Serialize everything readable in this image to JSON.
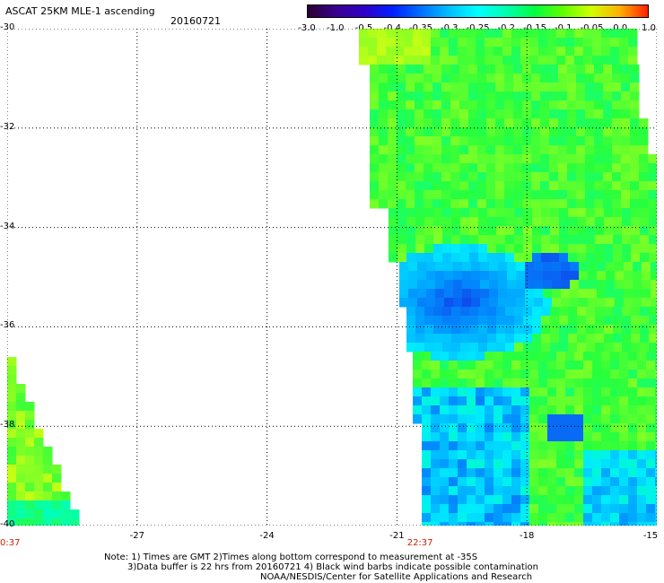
{
  "header": {
    "title": "ASCAT 25KM MLE-1 ascending",
    "date": "20160721"
  },
  "colorbar": {
    "tick_labels": [
      "-3.0",
      "-1.0",
      "-0.5",
      "-0.4",
      "-0.35",
      "-0.3",
      "-0.25",
      "-0.2",
      "-0.15",
      "-0.1",
      "-0.05",
      "0.0",
      "1.0"
    ],
    "colors": [
      "#2a0030",
      "#3a0090",
      "#3000c8",
      "#0020ff",
      "#0070ff",
      "#00c0ff",
      "#00ffff",
      "#00ffb0",
      "#00ff40",
      "#60ff00",
      "#d0ff00",
      "#ffb000",
      "#ff2000"
    ]
  },
  "map": {
    "lat_labels": [
      "-30",
      "-32",
      "-34",
      "-36",
      "-38",
      "-40"
    ],
    "lon_labels": [
      "-27",
      "-24",
      "-21",
      "-18",
      "-15"
    ],
    "lon_range": [
      -30,
      -15
    ],
    "lat_range": [
      -40,
      -30
    ],
    "pass_times": [
      "0:37",
      "22:37"
    ],
    "pass_time_lons": [
      -30,
      -20.6
    ]
  },
  "notes": {
    "line1": "Note: 1) Times are GMT 2)Times along bottom correspond to measurement at -35S",
    "line2": "3)Data buffer is 22 hrs from 20160721 4) Black wind barbs indicate possible contamination",
    "line3": "NOAA/NESDIS/Center for Satellite Applications and Research"
  }
}
